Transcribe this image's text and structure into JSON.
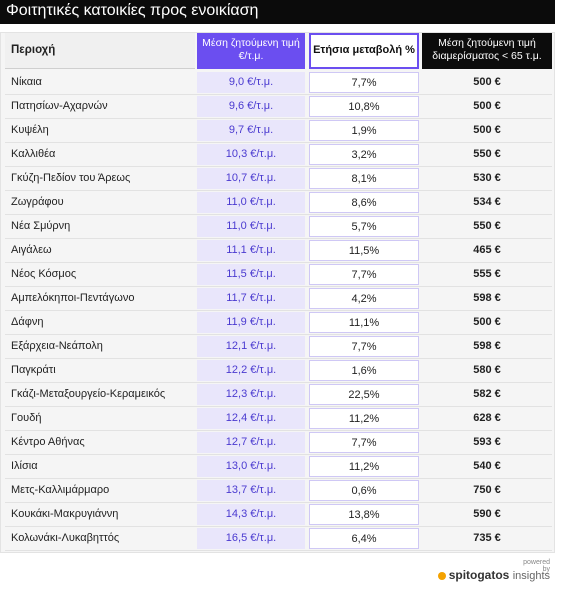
{
  "title": "Φοιτητικές κατοικίες προς ενοικίαση",
  "chart_data": {
    "type": "table",
    "columns": [
      "Περιοχή",
      "Μέση ζητούμενη τιμή €/τ.μ.",
      "Ετήσια μεταβολή %",
      "Μέση ζητούμενη τιμή διαμερίσματος < 65 τ.μ."
    ],
    "rows": [
      [
        "Νίκαια",
        "9,0 €/τ.μ.",
        "7,7%",
        "500 €"
      ],
      [
        "Πατησίων-Αχαρνών",
        "9,6 €/τ.μ.",
        "10,8%",
        "500 €"
      ],
      [
        "Κυψέλη",
        "9,7 €/τ.μ.",
        "1,9%",
        "500 €"
      ],
      [
        "Καλλιθέα",
        "10,3 €/τ.μ.",
        "3,2%",
        "550 €"
      ],
      [
        "Γκύζη-Πεδίον του Άρεως",
        "10,7 €/τ.μ.",
        "8,1%",
        "530 €"
      ],
      [
        "Ζωγράφου",
        "11,0 €/τ.μ.",
        "8,6%",
        "534 €"
      ],
      [
        "Νέα Σμύρνη",
        "11,0 €/τ.μ.",
        "5,7%",
        "550 €"
      ],
      [
        "Αιγάλεω",
        "11,1 €/τ.μ.",
        "11,5%",
        "465 €"
      ],
      [
        "Νέος Κόσμος",
        "11,5 €/τ.μ.",
        "7,7%",
        "555 €"
      ],
      [
        "Αμπελόκηποι-Πεντάγωνο",
        "11,7 €/τ.μ.",
        "4,2%",
        "598 €"
      ],
      [
        "Δάφνη",
        "11,9 €/τ.μ.",
        "11,1%",
        "500 €"
      ],
      [
        "Εξάρχεια-Νεάπολη",
        "12,1 €/τ.μ.",
        "7,7%",
        "598 €"
      ],
      [
        "Παγκράτι",
        "12,2 €/τ.μ.",
        "1,6%",
        "580 €"
      ],
      [
        "Γκάζι-Μεταξουργείο-Κεραμεικός",
        "12,3 €/τ.μ.",
        "22,5%",
        "582 €"
      ],
      [
        "Γουδή",
        "12,4 €/τ.μ.",
        "11,2%",
        "628 €"
      ],
      [
        "Κέντρο Αθήνας",
        "12,7 €/τ.μ.",
        "7,7%",
        "593 €"
      ],
      [
        "Ιλίσια",
        "13,0 €/τ.μ.",
        "11,2%",
        "540 €"
      ],
      [
        "Μετς-Καλλιμάρμαρο",
        "13,7 €/τ.μ.",
        "0,6%",
        "750 €"
      ],
      [
        "Κουκάκι-Μακρυγιάννη",
        "14,3 €/τ.μ.",
        "13,8%",
        "590 €"
      ],
      [
        "Κολωνάκι-Λυκαβηττός",
        "16,5 €/τ.μ.",
        "6,4%",
        "735 €"
      ]
    ]
  },
  "headers": {
    "region": "Περιοχή",
    "price": "Μέση ζητούμενη τιμή €/τ.μ.",
    "change": "Ετήσια μεταβολή %",
    "apt": "Μέση ζητούμενη τιμή διαμερίσματος < 65 τ.μ."
  },
  "brand": {
    "powered": "powered by",
    "name": "spitogatos",
    "sub": "insights"
  },
  "colors": {
    "accent": "#6b4ef0",
    "price_bg": "#e9e6fb",
    "dark": "#0c0c0c",
    "brand_dot": "#f4a200"
  }
}
